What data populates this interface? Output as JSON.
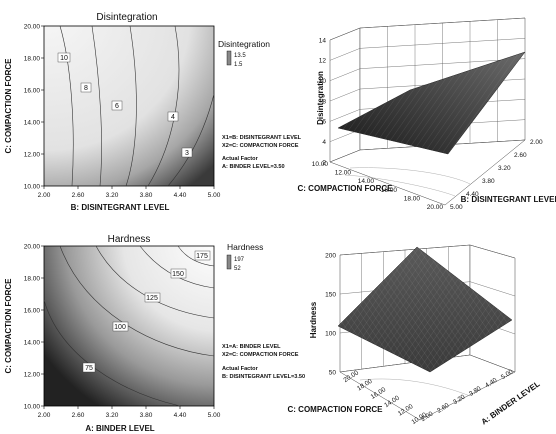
{
  "chart_data": [
    {
      "type": "contour",
      "title": "Disintegration",
      "xlabel": "B: DISINTEGRANT LEVEL",
      "ylabel": "C: COMPACTION FORCE",
      "xlim": [
        2.0,
        5.0
      ],
      "ylim": [
        10.0,
        20.0
      ],
      "x_ticks": [
        "2.00",
        "2.60",
        "3.20",
        "3.80",
        "4.40",
        "5.00"
      ],
      "y_ticks": [
        "10.00",
        "12.00",
        "14.00",
        "16.00",
        "18.00",
        "20.00"
      ],
      "contour_levels": [
        "10",
        "8",
        "6",
        "4",
        "3"
      ],
      "legend": {
        "title": "Disintegration",
        "max": "13.5",
        "min": "1.5"
      },
      "notes": [
        "X1=B: DISINTEGRANT LEVEL",
        "X2=C: COMPACTION FORCE",
        "Actual Factor",
        "A: BINDER LEVEL=3.50"
      ],
      "grid": false
    },
    {
      "type": "surface",
      "zlabel": "Disintegration",
      "xlabel": "C: COMPACTION FORCE",
      "ylabel": "B: DISINTEGRANT LEVEL",
      "z_ticks": [
        "2",
        "4",
        "6",
        "8",
        "10",
        "12",
        "14"
      ],
      "x_ticks": [
        "10.00",
        "12.00",
        "14.00",
        "16.00",
        "18.00",
        "20.00"
      ],
      "y_ticks": [
        "5.00",
        "4.40",
        "3.80",
        "3.20",
        "2.60",
        "2.00"
      ],
      "zlim": [
        2,
        14
      ],
      "grid": true
    },
    {
      "type": "contour",
      "title": "Hardness",
      "xlabel": "A: BINDER LEVEL",
      "ylabel": "C: COMPACTION FORCE",
      "xlim": [
        2.0,
        5.0
      ],
      "ylim": [
        10.0,
        20.0
      ],
      "x_ticks": [
        "2.00",
        "2.60",
        "3.20",
        "3.80",
        "4.40",
        "5.00"
      ],
      "y_ticks": [
        "10.00",
        "12.00",
        "14.00",
        "16.00",
        "18.00",
        "20.00"
      ],
      "contour_levels": [
        "175",
        "150",
        "125",
        "100",
        "75"
      ],
      "legend": {
        "title": "Hardness",
        "max": "197",
        "min": "52"
      },
      "notes": [
        "X1=A: BINDER LEVEL",
        "X2=C: COMPACTION FORCE",
        "Actual Factor",
        "B: DISINTEGRANT LEVEL=3.50"
      ],
      "grid": false
    },
    {
      "type": "surface",
      "zlabel": "Hardness",
      "xlabel": "C: COMPACTION FORCE",
      "ylabel": "A: BINDER LEVEL",
      "z_ticks": [
        "50",
        "100",
        "150",
        "200"
      ],
      "x_ticks": [
        "20.00",
        "18.00",
        "16.00",
        "14.00",
        "12.00",
        "10.00"
      ],
      "y_ticks": [
        "2.00",
        "2.60",
        "3.20",
        "3.80",
        "4.40",
        "5.00"
      ],
      "zlim": [
        50,
        200
      ],
      "grid": true
    }
  ]
}
